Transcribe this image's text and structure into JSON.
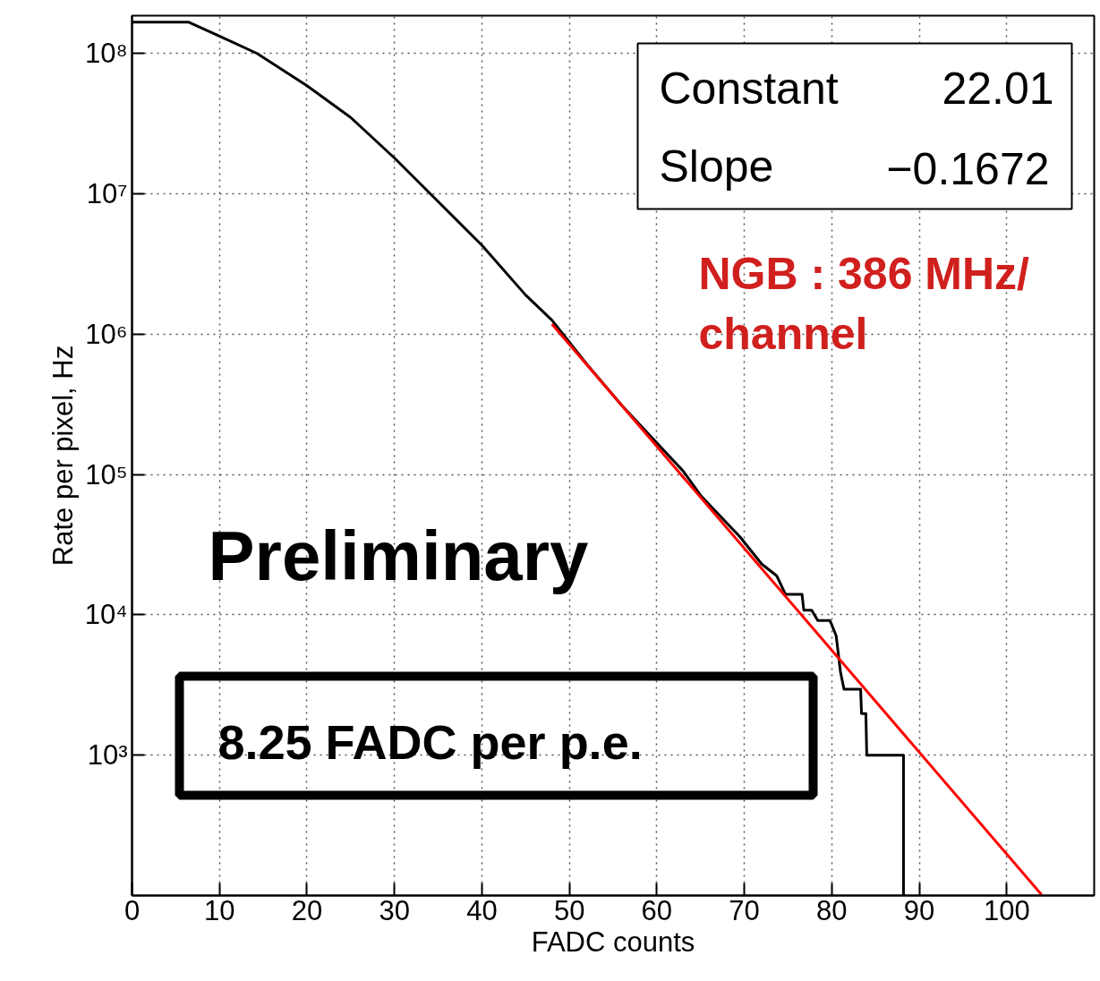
{
  "chart_data": {
    "type": "line",
    "xlabel": "FADC counts",
    "ylabel": "Rate per pixel, Hz",
    "log": "y",
    "grid": true,
    "marker": "none",
    "line_style": "solid",
    "xlim": [
      0,
      110
    ],
    "ylim": [
      100,
      186000000
    ],
    "xticks": [
      0,
      10,
      20,
      30,
      40,
      50,
      60,
      70,
      80,
      90,
      100
    ],
    "yticks": [
      {
        "value": 1000,
        "label": "10³"
      },
      {
        "value": 10000,
        "label": "10⁴"
      },
      {
        "value": 100000,
        "label": "10⁵"
      },
      {
        "value": 1000000,
        "label": "10⁶"
      },
      {
        "value": 10000000,
        "label": "10⁷"
      },
      {
        "value": 100000000,
        "label": "10⁸"
      }
    ],
    "series": [
      {
        "color": "#000000",
        "x": [
          0,
          6.5,
          10,
          14.3,
          20,
          25,
          30,
          35,
          40,
          45,
          48,
          52,
          56,
          63,
          65,
          69.5,
          72,
          73.7,
          74.7,
          76.6,
          76.8,
          77.7,
          78.4,
          79.8,
          80.5,
          81,
          81.4,
          83.3,
          83.4,
          83.9,
          84,
          88.2,
          88.2
        ],
        "values": [
          167000000,
          167000000,
          133000000,
          100000000,
          59000000,
          35000000,
          18000000,
          8800000,
          4300000,
          1900000,
          1260000,
          610000,
          310000,
          106000,
          71000,
          36000,
          23000,
          19000,
          14000,
          14000,
          10800,
          10800,
          9100,
          9100,
          7100,
          3900,
          2950,
          2950,
          1980,
          1980,
          1000,
          1000,
          100
        ]
      },
      {
        "color": "#ff0000",
        "x": [
          48,
          104
        ],
        "values": [
          1180000,
          101
        ]
      }
    ],
    "annotations": [
      "Constant",
      "22.01",
      "Slope",
      "−0.1672",
      "NGB : 386 MHz/\nchannel",
      "Preliminary",
      "8.25 FADC per p.e."
    ]
  }
}
